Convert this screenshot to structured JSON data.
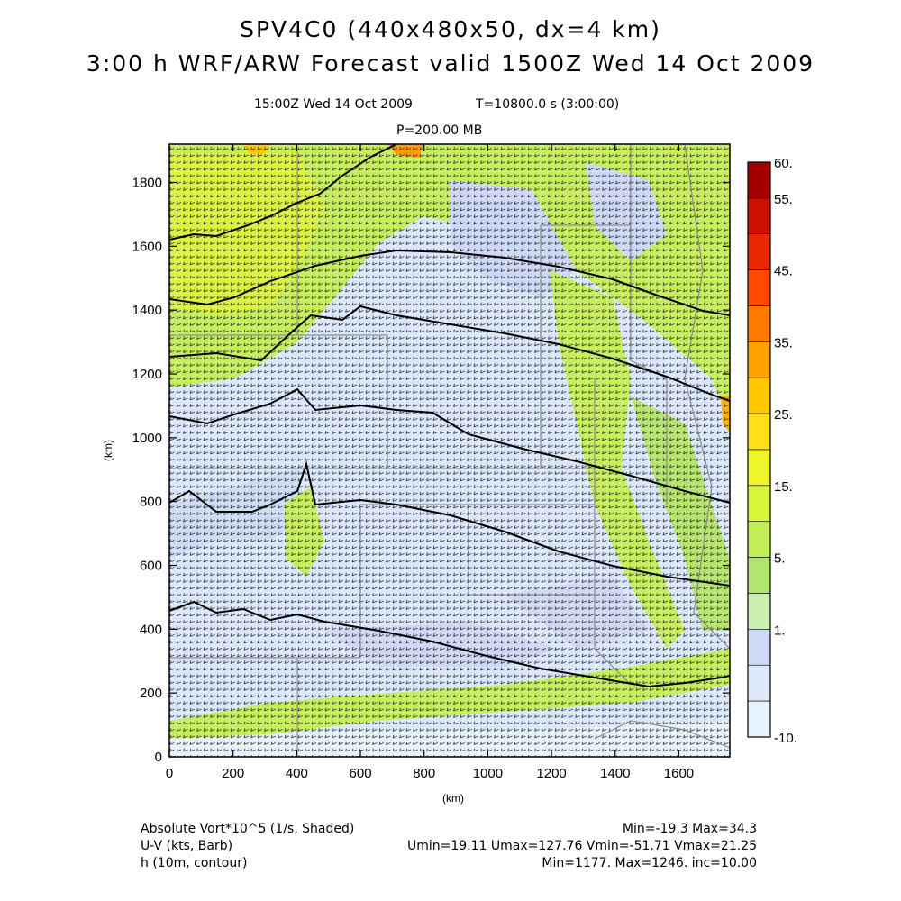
{
  "header": {
    "title_line1": "SPV4C0 (440x480x50, dx=4 km)",
    "title_line2": "3:00 h WRF/ARW Forecast valid 1500Z Wed 14 Oct 2009",
    "valid_time": "15:00Z Wed 14 Oct 2009",
    "sim_time": "T=10800.0 s (3:00:00)",
    "pressure_level": "P=200.00 MB"
  },
  "axes": {
    "x_label": "(km)",
    "y_label": "(km)",
    "x_ticks": [
      "0",
      "200",
      "400",
      "600",
      "800",
      "1000",
      "1200",
      "1400",
      "1600"
    ],
    "y_ticks": [
      "0",
      "200",
      "400",
      "600",
      "800",
      "1000",
      "1200",
      "1400",
      "1600",
      "1800"
    ],
    "x_range": [
      0,
      1760
    ],
    "y_range": [
      0,
      1920
    ]
  },
  "colorbar": {
    "labels": [
      "60.",
      "55.",
      "45.",
      "35.",
      "25.",
      "15.",
      "5.",
      "1.",
      "-10."
    ],
    "colors": [
      "#a50000",
      "#cc1100",
      "#e82800",
      "#ff4a00",
      "#ff7a00",
      "#ffa200",
      "#ffc800",
      "#ffe01a",
      "#f0f52a",
      "#d8f53c",
      "#c2ee55",
      "#b2e66e",
      "#c9f0b0",
      "#cdd9f6",
      "#dde8fb",
      "#e6f3fc"
    ]
  },
  "footer": {
    "field1_name": "Absolute Vort*10^5 (1/s, Shaded)",
    "field1_stats": "Min=-19.3 Max=34.3",
    "field2_name": "U-V (kts, Barb)",
    "field2_stats": "Umin=19.11 Umax=127.76 Vmin=-51.71 Vmax=21.25",
    "field3_name": "h (10m, contour)",
    "field3_stats": "Min=1177. Max=1246. inc=10.00"
  }
}
